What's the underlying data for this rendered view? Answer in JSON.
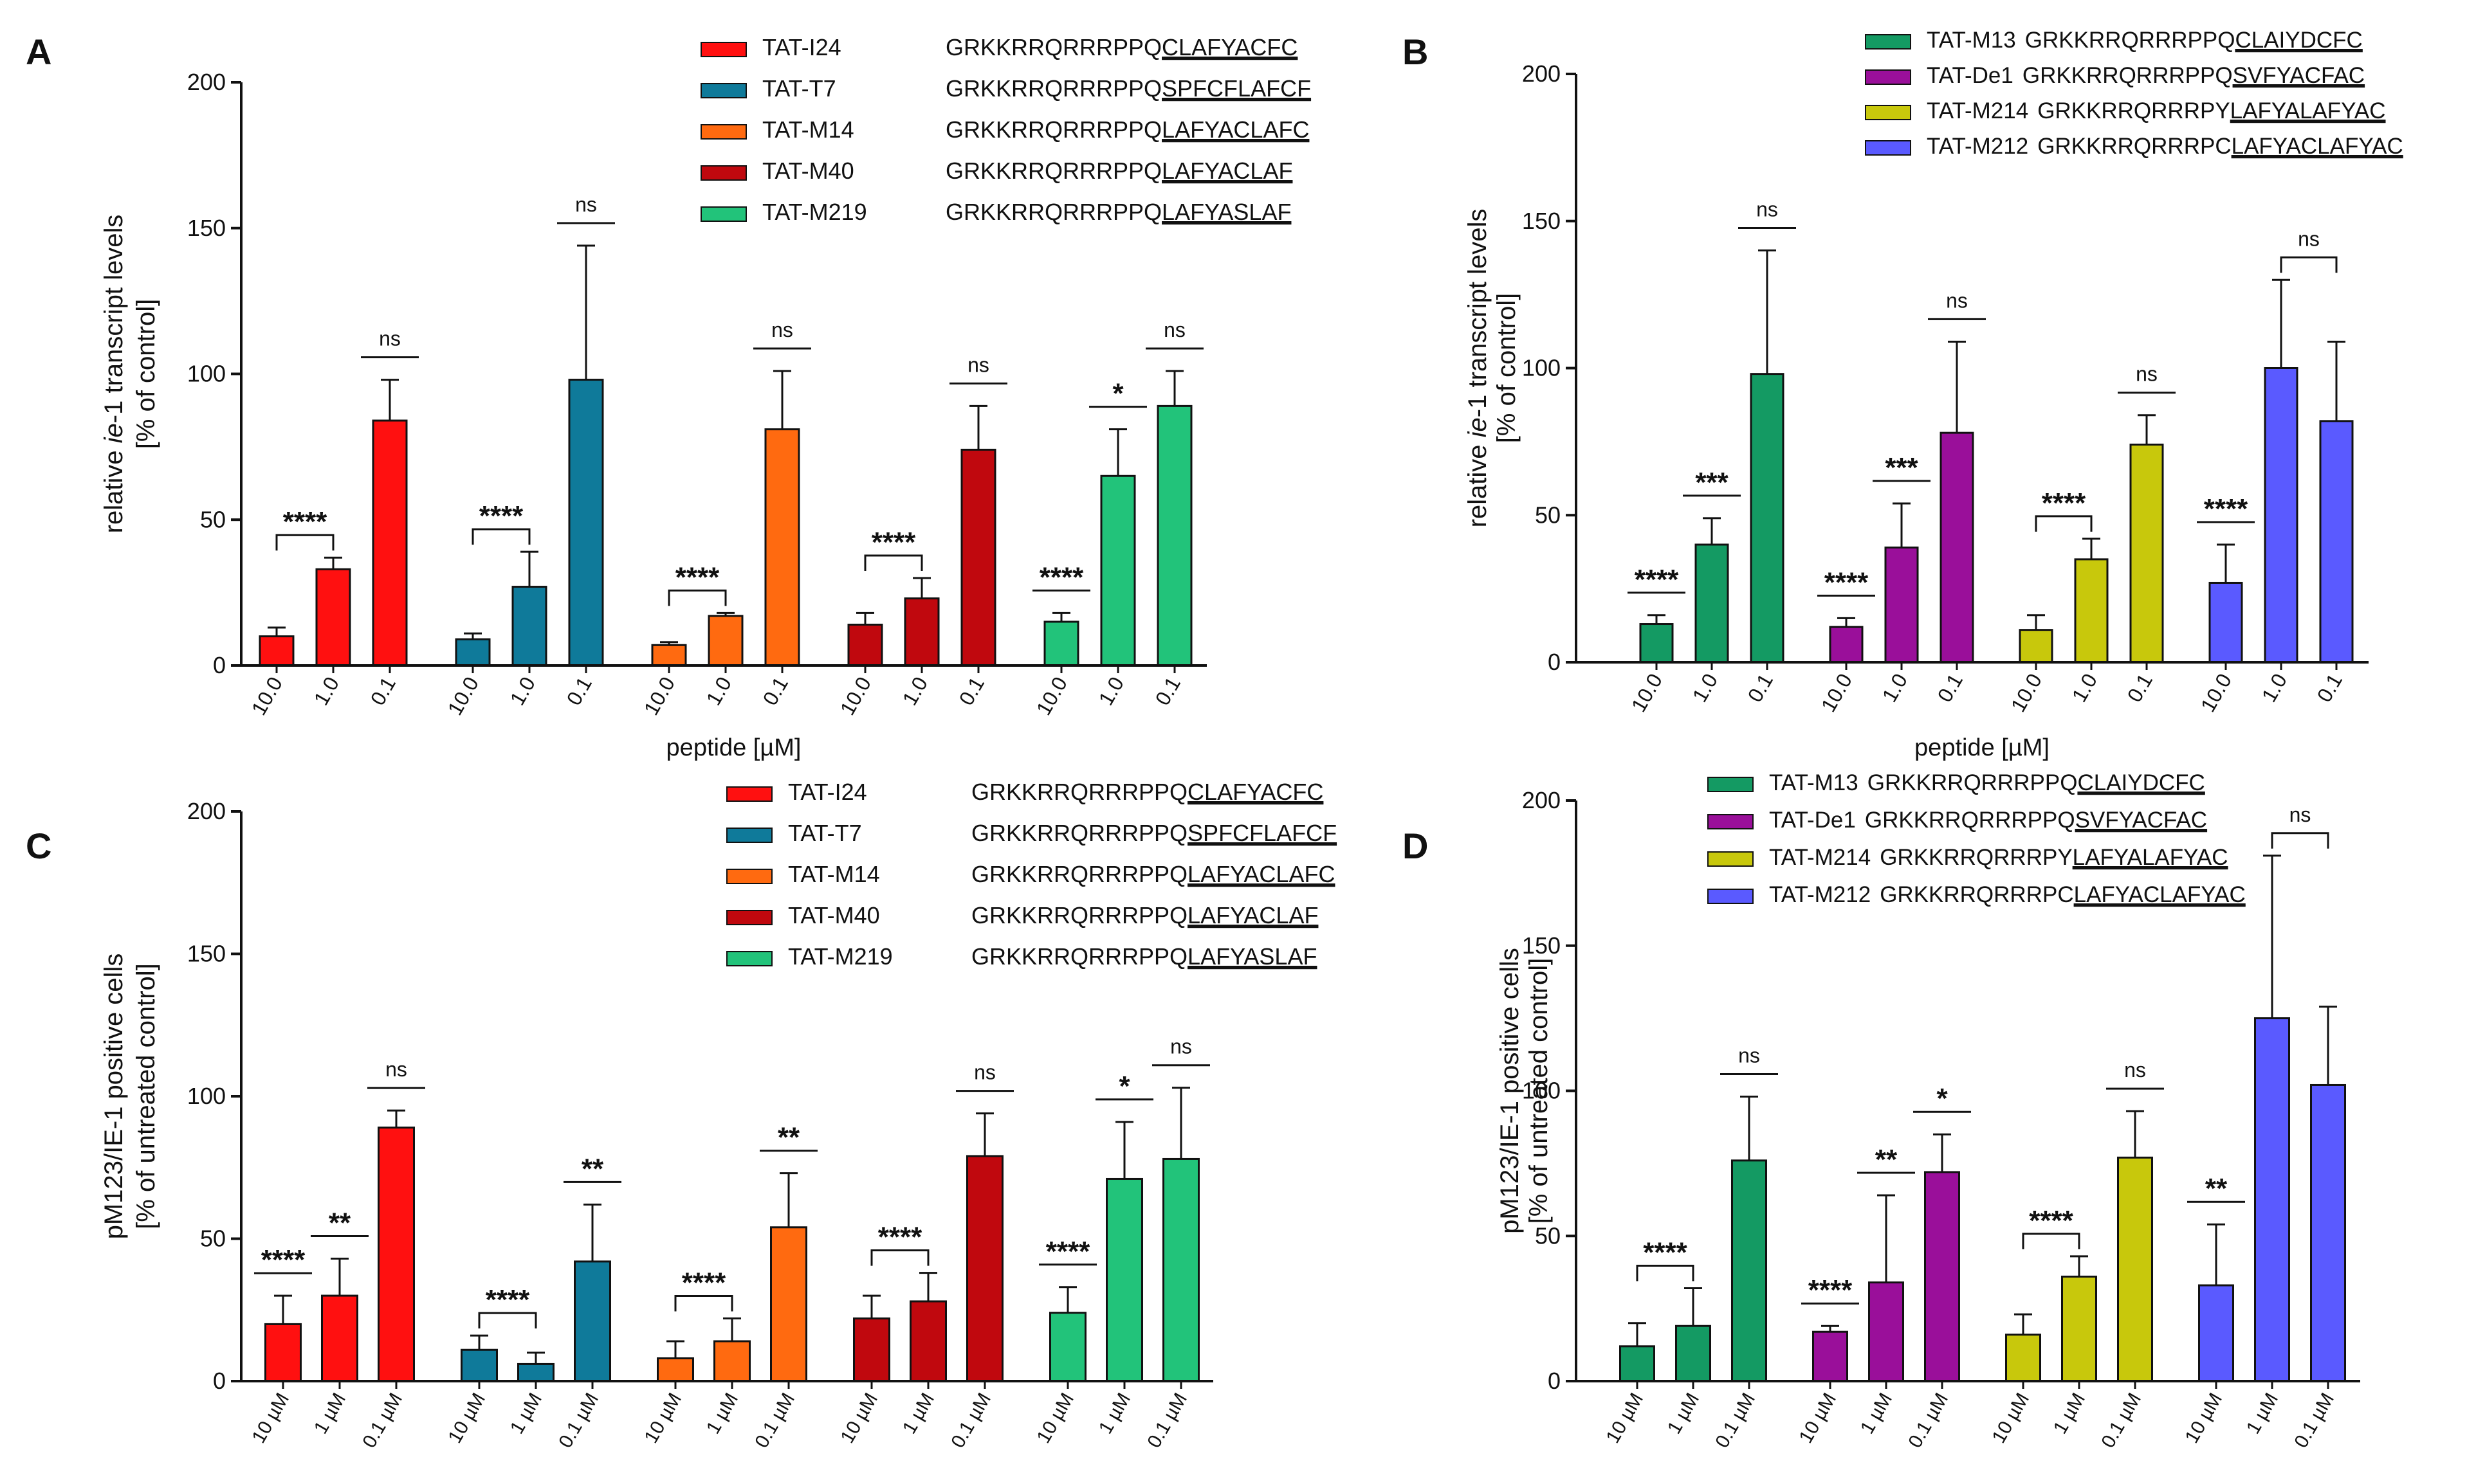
{
  "chart_data": [
    {
      "panel_label": "A",
      "type": "bar",
      "ylabel_pre": "relative ",
      "ylabel_italic": "ie",
      "ylabel_post": "-1 transcript levels",
      "ylabel2": "[% of control]",
      "xlabel": "peptide [µM]",
      "ylim": [
        0,
        200
      ],
      "yticks": [
        "0",
        "50",
        "100",
        "150",
        "200"
      ],
      "groups": [
        {
          "name": "TAT-I24",
          "prefix": "GRKKRRQRRRPPQ",
          "suffix": "CLAFYACFC",
          "color": "#ff1010",
          "categories": [
            "10.0",
            "1.0",
            "0.1"
          ],
          "values": [
            10,
            33,
            84
          ],
          "errors": [
            3,
            4,
            14
          ],
          "sig": [
            {
              "from": 0,
              "to": 1,
              "text": "****",
              "bracket": true
            },
            {
              "from": 2,
              "to": 2,
              "text": "ns"
            }
          ]
        },
        {
          "name": "TAT-T7",
          "prefix": "GRKKRRQRRRPPQ",
          "suffix": "SPFCFLAFCF",
          "color": "#0f7a9a",
          "categories": [
            "10.0",
            "1.0",
            "0.1"
          ],
          "values": [
            9,
            27,
            98
          ],
          "errors": [
            2,
            12,
            46
          ],
          "sig": [
            {
              "from": 0,
              "to": 1,
              "text": "****",
              "bracket": true
            },
            {
              "from": 2,
              "to": 2,
              "text": "ns"
            }
          ]
        },
        {
          "name": "TAT-M14",
          "prefix": "GRKKRRQRRRPPQ",
          "suffix": "LAFYACLAFC",
          "color": "#ff6a10",
          "categories": [
            "10.0",
            "1.0",
            "0.1"
          ],
          "values": [
            7,
            17,
            81
          ],
          "errors": [
            1,
            1,
            20
          ],
          "sig": [
            {
              "from": 0,
              "to": 1,
              "text": "****",
              "bracket": true
            },
            {
              "from": 2,
              "to": 2,
              "text": "ns"
            }
          ]
        },
        {
          "name": "TAT-M40",
          "prefix": "GRKKRRQRRRPPQ",
          "suffix": "LAFYACLAF",
          "color": "#c0080e",
          "categories": [
            "10.0",
            "1.0",
            "0.1"
          ],
          "values": [
            14,
            23,
            74
          ],
          "errors": [
            4,
            7,
            15
          ],
          "sig": [
            {
              "from": 0,
              "to": 1,
              "text": "****",
              "bracket": true
            },
            {
              "from": 2,
              "to": 2,
              "text": "ns"
            }
          ]
        },
        {
          "name": "TAT-M219",
          "prefix": "GRKKRRQRRRPPQ",
          "suffix": "LAFYASLAF",
          "color": "#22c37a",
          "categories": [
            "10.0",
            "1.0",
            "0.1"
          ],
          "values": [
            15,
            65,
            89
          ],
          "errors": [
            3,
            16,
            12
          ],
          "sig": [
            {
              "from": 0,
              "to": 0,
              "text": "****"
            },
            {
              "from": 1,
              "to": 1,
              "text": "*"
            },
            {
              "from": 2,
              "to": 2,
              "text": "ns"
            }
          ]
        }
      ]
    },
    {
      "panel_label": "B",
      "type": "bar",
      "ylabel_pre": "relative ",
      "ylabel_italic": "ie",
      "ylabel_post": "-1 transcript levels",
      "ylabel2": "[% of control]",
      "xlabel": "peptide [µM]",
      "ylim": [
        0,
        200
      ],
      "yticks": [
        "0",
        "50",
        "100",
        "150",
        "200"
      ],
      "groups": [
        {
          "name": "TAT-M13",
          "prefix": "GRKKRRQRRRPPQ",
          "suffix": "CLAIYDCFC",
          "color": "#149a63",
          "categories": [
            "10.0",
            "1.0",
            "0.1"
          ],
          "values": [
            13,
            40,
            98
          ],
          "errors": [
            3,
            9,
            42
          ],
          "sig": [
            {
              "from": 0,
              "to": 0,
              "text": "****"
            },
            {
              "from": 1,
              "to": 1,
              "text": "***"
            },
            {
              "from": 2,
              "to": 2,
              "text": "ns"
            }
          ]
        },
        {
          "name": "TAT-De1",
          "prefix": "GRKKRRQRRRPPQ",
          "suffix": "SVFYACFAC",
          "color": "#9a0f9a",
          "categories": [
            "10.0",
            "1.0",
            "0.1"
          ],
          "values": [
            12,
            39,
            78
          ],
          "errors": [
            3,
            15,
            31
          ],
          "sig": [
            {
              "from": 0,
              "to": 0,
              "text": "****"
            },
            {
              "from": 1,
              "to": 1,
              "text": "***"
            },
            {
              "from": 2,
              "to": 2,
              "text": "ns"
            }
          ]
        },
        {
          "name": "TAT-M214",
          "prefix": "GRKKRRQRRRPY",
          "suffix": "LAFYALAFYAC",
          "color": "#c8c80c",
          "categories": [
            "10.0",
            "1.0",
            "0.1"
          ],
          "values": [
            11,
            35,
            74
          ],
          "errors": [
            5,
            7,
            10
          ],
          "sig": [
            {
              "from": 0,
              "to": 1,
              "text": "****",
              "bracket": true
            },
            {
              "from": 2,
              "to": 2,
              "text": "ns"
            }
          ]
        },
        {
          "name": "TAT-M212",
          "prefix": "GRKKRRQRRRPC",
          "suffix": "LAFYACLAFYAC",
          "color": "#5a5aff",
          "categories": [
            "10.0",
            "1.0",
            "0.1"
          ],
          "values": [
            27,
            100,
            82
          ],
          "errors": [
            13,
            30,
            27
          ],
          "sig": [
            {
              "from": 0,
              "to": 0,
              "text": "****"
            },
            {
              "from": 1,
              "to": 2,
              "text": "ns",
              "bracket": true
            }
          ]
        }
      ]
    },
    {
      "panel_label": "C",
      "type": "bar",
      "ylabel_pre": "pM123/IE-1 positive cells",
      "ylabel_italic": "",
      "ylabel_post": "",
      "ylabel2": "[% of untreated control]",
      "xlabel": "",
      "ylim": [
        0,
        200
      ],
      "yticks": [
        "0",
        "50",
        "100",
        "150",
        "200"
      ],
      "groups": [
        {
          "name": "TAT-I24",
          "prefix": "GRKKRRQRRRPPQ",
          "suffix": "CLAFYACFC",
          "color": "#ff1010",
          "categories": [
            "10 µM",
            "1 µM",
            "0.1 µM"
          ],
          "values": [
            20,
            30,
            89
          ],
          "errors": [
            10,
            13,
            6
          ],
          "sig": [
            {
              "from": 0,
              "to": 0,
              "text": "****"
            },
            {
              "from": 1,
              "to": 1,
              "text": "**"
            },
            {
              "from": 2,
              "to": 2,
              "text": "ns"
            }
          ]
        },
        {
          "name": "TAT-T7",
          "prefix": "GRKKRRQRRRPPQ",
          "suffix": "SPFCFLAFCF",
          "color": "#0f7a9a",
          "categories": [
            "10 µM",
            "1 µM",
            "0.1 µM"
          ],
          "values": [
            11,
            6,
            42
          ],
          "errors": [
            5,
            4,
            20
          ],
          "sig": [
            {
              "from": 0,
              "to": 1,
              "text": "****",
              "bracket": true
            },
            {
              "from": 2,
              "to": 2,
              "text": "**"
            }
          ]
        },
        {
          "name": "TAT-M14",
          "prefix": "GRKKRRQRRRPPQ",
          "suffix": "LAFYACLAFC",
          "color": "#ff6a10",
          "categories": [
            "10 µM",
            "1 µM",
            "0.1 µM"
          ],
          "values": [
            8,
            14,
            54
          ],
          "errors": [
            6,
            8,
            19
          ],
          "sig": [
            {
              "from": 0,
              "to": 1,
              "text": "****",
              "bracket": true
            },
            {
              "from": 2,
              "to": 2,
              "text": "**"
            }
          ]
        },
        {
          "name": "TAT-M40",
          "prefix": "GRKKRRQRRRPPQ",
          "suffix": "LAFYACLAF",
          "color": "#c0080e",
          "categories": [
            "10 µM",
            "1 µM",
            "0.1 µM"
          ],
          "values": [
            22,
            28,
            79
          ],
          "errors": [
            8,
            10,
            15
          ],
          "sig": [
            {
              "from": 0,
              "to": 1,
              "text": "****",
              "bracket": true
            },
            {
              "from": 2,
              "to": 2,
              "text": "ns"
            }
          ]
        },
        {
          "name": "TAT-M219",
          "prefix": "GRKKRRQRRRPPQ",
          "suffix": "LAFYASLAF",
          "color": "#22c37a",
          "categories": [
            "10 µM",
            "1 µM",
            "0.1 µM"
          ],
          "values": [
            24,
            71,
            78
          ],
          "errors": [
            9,
            20,
            25
          ],
          "sig": [
            {
              "from": 0,
              "to": 0,
              "text": "****"
            },
            {
              "from": 1,
              "to": 1,
              "text": "*"
            },
            {
              "from": 2,
              "to": 2,
              "text": "ns"
            }
          ]
        }
      ]
    },
    {
      "panel_label": "D",
      "type": "bar",
      "ylabel_pre": "pM123/IE-1 positive cells",
      "ylabel_italic": "",
      "ylabel_post": "",
      "ylabel2": "[% of untreated control]",
      "xlabel": "",
      "ylim": [
        0,
        200
      ],
      "yticks": [
        "0",
        "50",
        "100",
        "150",
        "200"
      ],
      "groups": [
        {
          "name": "TAT-M13",
          "prefix": "GRKKRRQRRRPPQ",
          "suffix": "CLAIYDCFC",
          "color": "#149a63",
          "categories": [
            "10 µM",
            "1 µM",
            "0.1 µM"
          ],
          "values": [
            12,
            19,
            76
          ],
          "errors": [
            8,
            13,
            22
          ],
          "sig": [
            {
              "from": 0,
              "to": 1,
              "text": "****",
              "bracket": true
            },
            {
              "from": 2,
              "to": 2,
              "text": "ns"
            }
          ]
        },
        {
          "name": "TAT-De1",
          "prefix": "GRKKRRQRRRPPQ",
          "suffix": "SVFYACFAC",
          "color": "#9a0f9a",
          "categories": [
            "10 µM",
            "1 µM",
            "0.1 µM"
          ],
          "values": [
            17,
            34,
            72
          ],
          "errors": [
            2,
            30,
            13
          ],
          "sig": [
            {
              "from": 0,
              "to": 0,
              "text": "****"
            },
            {
              "from": 1,
              "to": 1,
              "text": "**"
            },
            {
              "from": 2,
              "to": 2,
              "text": "*"
            }
          ]
        },
        {
          "name": "TAT-M214",
          "prefix": "GRKKRRQRRRPY",
          "suffix": "LAFYALAFYAC",
          "color": "#c8c80c",
          "categories": [
            "10 µM",
            "1 µM",
            "0.1 µM"
          ],
          "values": [
            16,
            36,
            77
          ],
          "errors": [
            7,
            7,
            16
          ],
          "sig": [
            {
              "from": 0,
              "to": 1,
              "text": "****",
              "bracket": true
            },
            {
              "from": 2,
              "to": 2,
              "text": "ns"
            }
          ]
        },
        {
          "name": "TAT-M212",
          "prefix": "GRKKRRQRRRPC",
          "suffix": "LAFYACLAFYAC",
          "color": "#5a5aff",
          "categories": [
            "10 µM",
            "1 µM",
            "0.1 µM"
          ],
          "values": [
            33,
            125,
            102
          ],
          "errors": [
            21,
            56,
            27
          ],
          "sig": [
            {
              "from": 0,
              "to": 0,
              "text": "**"
            },
            {
              "from": 1,
              "to": 2,
              "text": "ns",
              "bracket": true
            }
          ]
        }
      ]
    }
  ]
}
